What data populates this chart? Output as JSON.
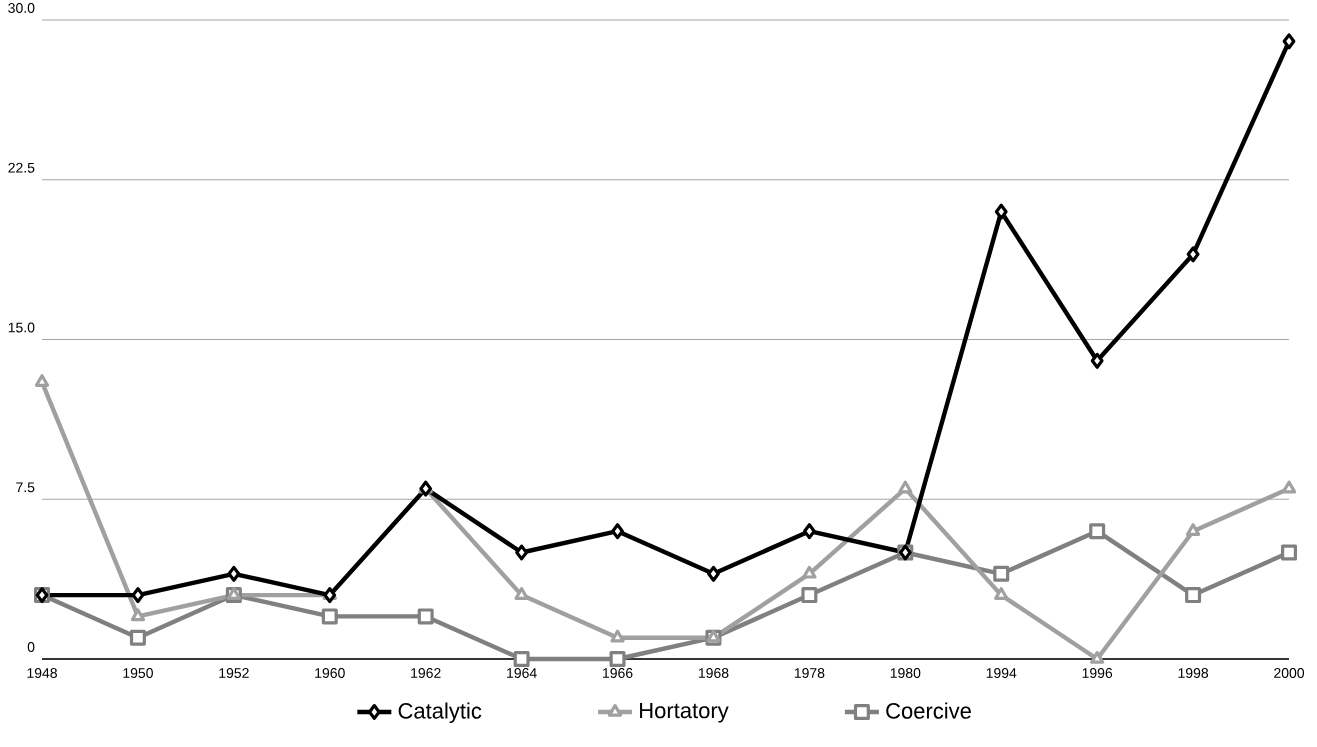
{
  "chart_data": {
    "type": "line",
    "categories": [
      "1948",
      "1950",
      "1952",
      "1960",
      "1962",
      "1964",
      "1966",
      "1968",
      "1978",
      "1980",
      "1994",
      "1996",
      "1998",
      "2000"
    ],
    "series": [
      {
        "name": "Catalytic",
        "color": "#000000",
        "marker": "diamond",
        "values": [
          3,
          3,
          4,
          3,
          8,
          5,
          6,
          4,
          6,
          5,
          21,
          14,
          19,
          29
        ]
      },
      {
        "name": "Hortatory",
        "color": "#a0a0a0",
        "marker": "triangle",
        "values": [
          13,
          2,
          3,
          3,
          8,
          3,
          1,
          1,
          4,
          8,
          3,
          0,
          6,
          8
        ]
      },
      {
        "name": "Coercive",
        "color": "#808080",
        "marker": "square",
        "values": [
          3,
          1,
          3,
          2,
          2,
          0,
          0,
          1,
          3,
          5,
          4,
          6,
          3,
          5
        ]
      }
    ],
    "ylim": [
      0,
      30
    ],
    "yticks": [
      0,
      7.5,
      {
        "value": 15,
        "label": "15.0"
      },
      {
        "value": 22.5,
        "label": "22.5"
      },
      {
        "value": 30,
        "label": "30.0"
      }
    ],
    "grid": "y",
    "legend": "bottom",
    "line_style": "solid"
  }
}
